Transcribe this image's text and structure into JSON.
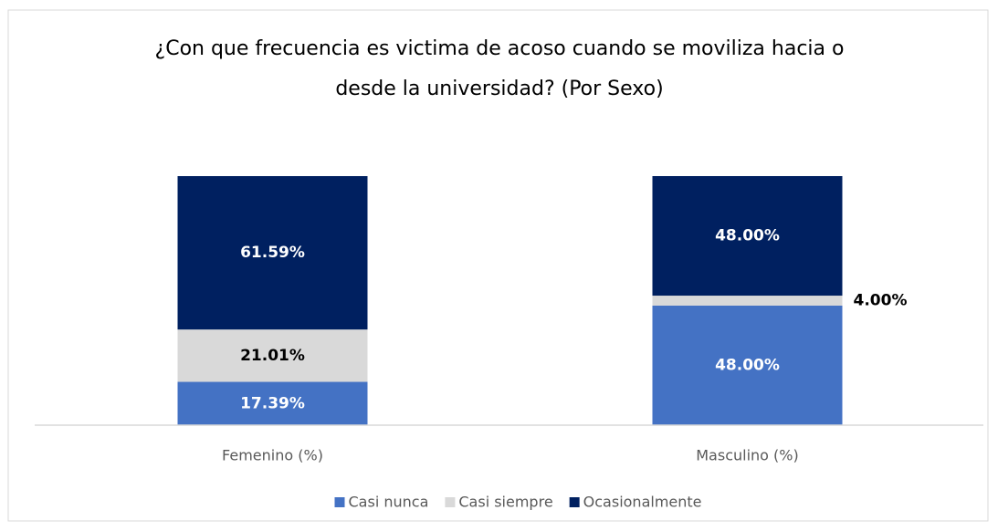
{
  "chart_data": {
    "type": "stacked_bar",
    "title": "¿Con que frecuencia es victima de acoso cuando se moviliza hacia o desde la universidad? (Por Sexo)",
    "categories": [
      "Femenino (%)",
      "Masculino (%)"
    ],
    "series": [
      {
        "name": "Casi nunca",
        "color": "#4472c4",
        "label_color": "#ffffff",
        "values": [
          17.39,
          48.0
        ],
        "value_labels": [
          "17.39%",
          "48.00%"
        ]
      },
      {
        "name": "Casi siempre",
        "color": "#d9d9d9",
        "label_color": "#000000",
        "values": [
          21.01,
          4.0
        ],
        "value_labels": [
          "21.01%",
          "4.00%"
        ]
      },
      {
        "name": "Ocasionalmente",
        "color": "#002060",
        "label_color": "#ffffff",
        "values": [
          61.59,
          48.0
        ],
        "value_labels": [
          "61.59%",
          "48.00%"
        ]
      }
    ],
    "ylim": [
      0,
      100
    ],
    "legend": "bottom"
  }
}
